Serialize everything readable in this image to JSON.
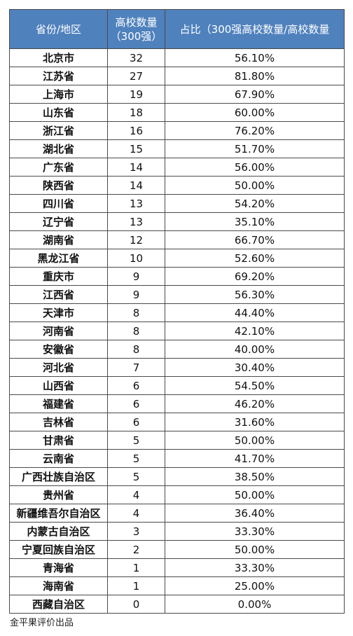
{
  "table": {
    "headers": {
      "province": "省份/地区",
      "count_line1": "高校数量",
      "count_line2": "（300强）",
      "ratio": "占比（300强高校数量/高校数量"
    },
    "rows": [
      {
        "province": "北京市",
        "count": "32",
        "ratio": "56.10%"
      },
      {
        "province": "江苏省",
        "count": "27",
        "ratio": "81.80%"
      },
      {
        "province": "上海市",
        "count": "19",
        "ratio": "67.90%"
      },
      {
        "province": "山东省",
        "count": "18",
        "ratio": "60.00%"
      },
      {
        "province": "浙江省",
        "count": "16",
        "ratio": "76.20%"
      },
      {
        "province": "湖北省",
        "count": "15",
        "ratio": "51.70%"
      },
      {
        "province": "广东省",
        "count": "14",
        "ratio": "56.00%"
      },
      {
        "province": "陕西省",
        "count": "14",
        "ratio": "50.00%"
      },
      {
        "province": "四川省",
        "count": "13",
        "ratio": "54.20%"
      },
      {
        "province": "辽宁省",
        "count": "13",
        "ratio": "35.10%"
      },
      {
        "province": "湖南省",
        "count": "12",
        "ratio": "66.70%"
      },
      {
        "province": "黑龙江省",
        "count": "10",
        "ratio": "52.60%"
      },
      {
        "province": "重庆市",
        "count": "9",
        "ratio": "69.20%"
      },
      {
        "province": "江西省",
        "count": "9",
        "ratio": "56.30%"
      },
      {
        "province": "天津市",
        "count": "8",
        "ratio": "44.40%"
      },
      {
        "province": "河南省",
        "count": "8",
        "ratio": "42.10%"
      },
      {
        "province": "安徽省",
        "count": "8",
        "ratio": "40.00%"
      },
      {
        "province": "河北省",
        "count": "7",
        "ratio": "30.40%"
      },
      {
        "province": "山西省",
        "count": "6",
        "ratio": "54.50%"
      },
      {
        "province": "福建省",
        "count": "6",
        "ratio": "46.20%"
      },
      {
        "province": "吉林省",
        "count": "6",
        "ratio": "31.60%"
      },
      {
        "province": "甘肃省",
        "count": "5",
        "ratio": "50.00%"
      },
      {
        "province": "云南省",
        "count": "5",
        "ratio": "41.70%"
      },
      {
        "province": "广西壮族自治区",
        "count": "5",
        "ratio": "38.50%"
      },
      {
        "province": "贵州省",
        "count": "4",
        "ratio": "50.00%"
      },
      {
        "province": "新疆维吾尔自治区",
        "count": "4",
        "ratio": "36.40%"
      },
      {
        "province": "内蒙古自治区",
        "count": "3",
        "ratio": "33.30%"
      },
      {
        "province": "宁夏回族自治区",
        "count": "2",
        "ratio": "50.00%"
      },
      {
        "province": "青海省",
        "count": "1",
        "ratio": "33.30%"
      },
      {
        "province": "海南省",
        "count": "1",
        "ratio": "25.00%"
      },
      {
        "province": "西藏自治区",
        "count": "0",
        "ratio": "0.00%"
      }
    ]
  },
  "footer": {
    "credit": "金平果评价出品"
  },
  "colors": {
    "header_bg": "#4f81bd",
    "header_text": "#ffffff",
    "border": "#4a4a4a"
  }
}
